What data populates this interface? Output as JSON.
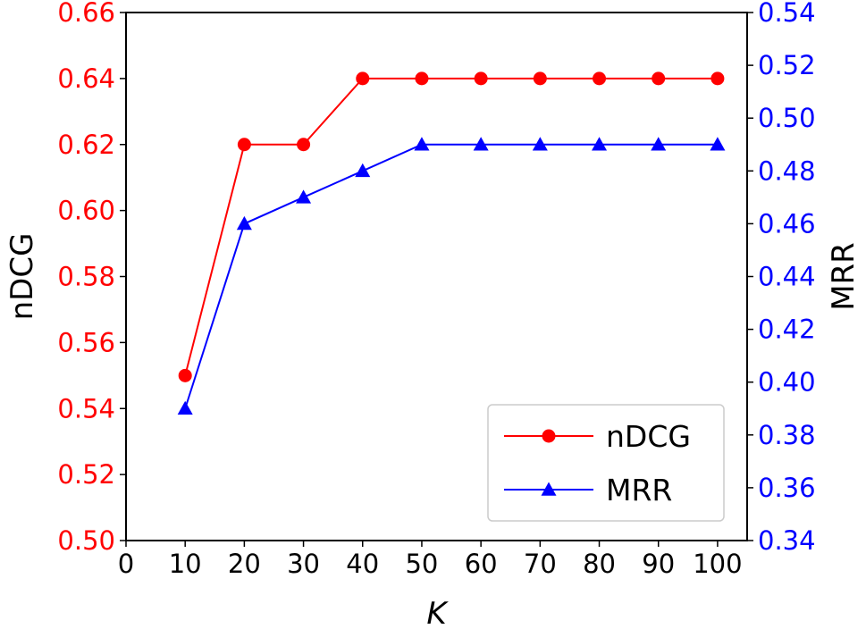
{
  "chart_data": {
    "type": "line",
    "x": [
      10,
      20,
      30,
      40,
      50,
      60,
      70,
      80,
      90,
      100
    ],
    "xlabel": "K",
    "xlim": [
      0,
      105
    ],
    "xticks": [
      "0",
      "10",
      "20",
      "30",
      "40",
      "50",
      "60",
      "70",
      "80",
      "90",
      "100"
    ],
    "left_axis": {
      "label": "nDCG",
      "color": "#ff0000",
      "ylim": [
        0.5,
        0.66
      ],
      "ticks": [
        "0.50",
        "0.52",
        "0.54",
        "0.56",
        "0.58",
        "0.60",
        "0.62",
        "0.64",
        "0.66"
      ]
    },
    "right_axis": {
      "label": "MRR",
      "color": "#0000ff",
      "ylim": [
        0.34,
        0.54
      ],
      "ticks": [
        "0.34",
        "0.36",
        "0.38",
        "0.40",
        "0.42",
        "0.44",
        "0.46",
        "0.48",
        "0.50",
        "0.52",
        "0.54"
      ]
    },
    "series": [
      {
        "name": "nDCG",
        "axis": "left",
        "color": "#ff0000",
        "marker": "circle",
        "values": [
          0.55,
          0.62,
          0.62,
          0.64,
          0.64,
          0.64,
          0.64,
          0.64,
          0.64,
          0.64
        ]
      },
      {
        "name": "MRR",
        "axis": "right",
        "color": "#0000ff",
        "marker": "triangle",
        "values": [
          0.39,
          0.46,
          0.47,
          0.48,
          0.49,
          0.49,
          0.49,
          0.49,
          0.49,
          0.49
        ]
      }
    ],
    "legend": {
      "position": "lower-right",
      "entries": [
        "nDCG",
        "MRR"
      ]
    },
    "grid": false
  }
}
